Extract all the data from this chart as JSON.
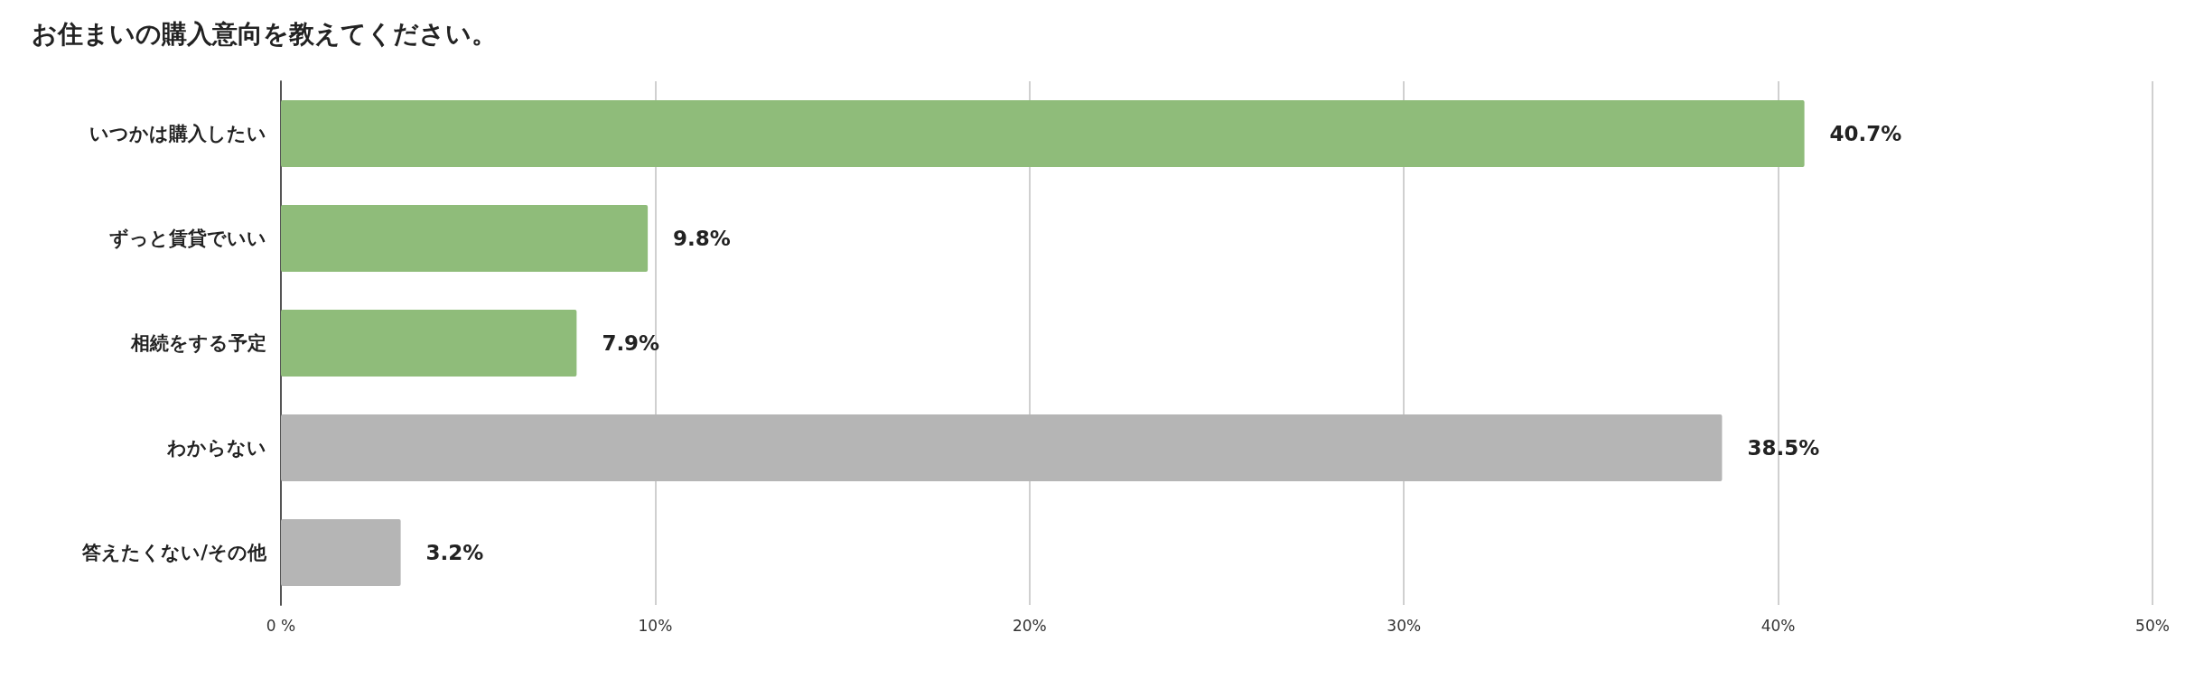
{
  "chart_data": {
    "type": "bar",
    "orientation": "horizontal",
    "title": "お住まいの購入意向を教えてください。",
    "categories": [
      "いつかは購入したい",
      "ずっと賃貸でいい",
      "相続をする予定",
      "わからない",
      "答えたくない/その他"
    ],
    "values": [
      40.7,
      9.8,
      7.9,
      38.5,
      3.2
    ],
    "colors": [
      "#8fbc7a",
      "#8fbc7a",
      "#8fbc7a",
      "#b5b5b5",
      "#b5b5b5"
    ],
    "value_labels": [
      "40.7%",
      "9.8%",
      "7.9%",
      "38.5%",
      "3.2%"
    ],
    "xlim": [
      0,
      50
    ],
    "xticks": [
      {
        "value": 0,
        "label": "0 %"
      },
      {
        "value": 10,
        "label": "10%"
      },
      {
        "value": 20,
        "label": "20%"
      },
      {
        "value": 30,
        "label": "30%"
      },
      {
        "value": 40,
        "label": "40%"
      },
      {
        "value": 50,
        "label": "50%"
      }
    ],
    "grid": "x"
  }
}
